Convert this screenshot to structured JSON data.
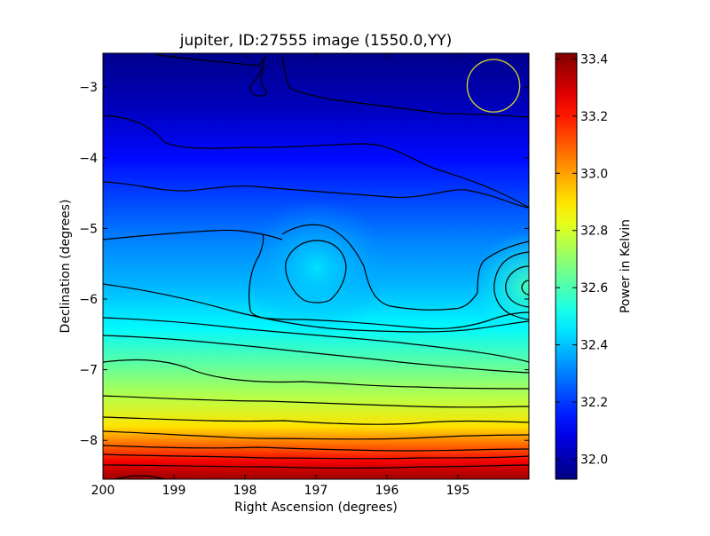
{
  "chart_data": {
    "type": "heatmap",
    "title": "jupiter, ID:27555 image (1550.0,YY)",
    "xlabel": "Right Ascension (degrees)",
    "ylabel": "Declination (degrees)",
    "xlim": [
      200.0,
      194.0
    ],
    "ylim": [
      -8.55,
      -2.52
    ],
    "x_ticks": [
      200,
      199,
      198,
      197,
      196,
      195
    ],
    "y_ticks": [
      -3,
      -4,
      -5,
      -6,
      -7,
      -8
    ],
    "x_tick_labels": [
      "200",
      "199",
      "198",
      "197",
      "196",
      "195"
    ],
    "y_tick_labels": [
      "−3",
      "−4",
      "−5",
      "−6",
      "−7",
      "−8"
    ],
    "colorbar": {
      "label": "Power in Kelvin",
      "range": [
        31.93,
        33.42
      ],
      "ticks": [
        32.0,
        32.2,
        32.4,
        32.6,
        32.8,
        33.0,
        33.2,
        33.4
      ],
      "tick_labels": [
        "32.0",
        "32.2",
        "32.4",
        "32.6",
        "32.8",
        "33.0",
        "33.2",
        "33.4"
      ]
    },
    "colormap": "jet",
    "contour_color": "#000000",
    "beam_marker": {
      "shape": "circle",
      "color": "#cccc33",
      "ra": 194.5,
      "dec": -2.98,
      "radius_deg": 0.37
    },
    "field_description": {
      "background_gradient_by_dec": [
        {
          "dec": -2.55,
          "value": 31.95
        },
        {
          "dec": -3.3,
          "value": 32.02
        },
        {
          "dec": -4.0,
          "value": 32.13
        },
        {
          "dec": -4.6,
          "value": 32.22
        },
        {
          "dec": -5.2,
          "value": 32.31
        },
        {
          "dec": -5.8,
          "value": 32.38
        },
        {
          "dec": -6.4,
          "value": 32.48
        },
        {
          "dec": -6.9,
          "value": 32.62
        },
        {
          "dec": -7.4,
          "value": 32.76
        },
        {
          "dec": -7.8,
          "value": 32.9
        },
        {
          "dec": -8.05,
          "value": 33.07
        },
        {
          "dec": -8.3,
          "value": 33.25
        },
        {
          "dec": -8.55,
          "value": 33.38
        }
      ],
      "peaks": [
        {
          "ra": 197.05,
          "dec": -5.6,
          "value": 32.45
        },
        {
          "ra": 194.05,
          "dec": -5.85,
          "value": 32.6
        }
      ]
    }
  }
}
